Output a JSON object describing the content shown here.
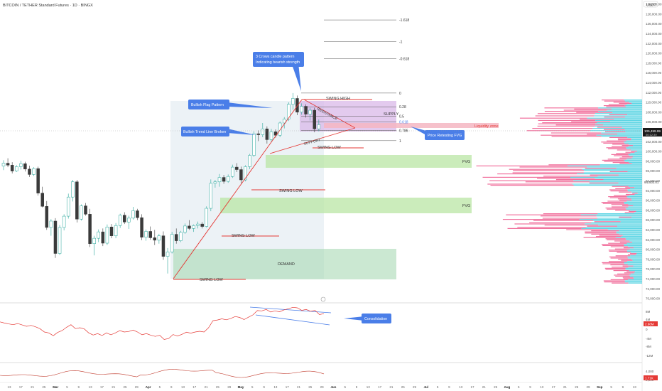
{
  "header": {
    "symbol_line": "BITCOIN / TETHER Standard Futures · 1D · BINGX",
    "currency_badge": "USDT"
  },
  "colors": {
    "bull": "#26a69a",
    "bear": "#3a3a3a",
    "pink": "#f06292",
    "cyan": "#4dd0e1",
    "fvg": "#b9e6a4",
    "supply": "#d9b8e8",
    "red_line": "#e53935",
    "blue_label": "#4a7ee8",
    "price_badge": "#1a1a1a",
    "rsi_line": "#e53935"
  },
  "price_axis": {
    "min": 70000,
    "max": 130000,
    "ticks": [
      130000,
      128000,
      126000,
      124000,
      122000,
      120000,
      118000,
      116000,
      114000,
      112000,
      110000,
      108000,
      106000,
      104000,
      102000,
      100000,
      98000,
      96000,
      94000,
      92000,
      90000,
      88000,
      86000,
      84000,
      82000,
      80000,
      78000,
      76000,
      74000,
      72000,
      70000
    ],
    "tick_labels": [
      "130,000.00",
      "128,000.00",
      "126,000.00",
      "124,000.00",
      "122,000.00",
      "120,000.00",
      "118,000.00",
      "116,000.00",
      "114,000.00",
      "112,000.00",
      "110,000.00",
      "108,000.00",
      "106,000.00",
      "104,000.00",
      "102,000.00",
      "100,000.00",
      "98,000.00",
      "96,000.00",
      "94,000.00",
      "92,000.00",
      "90,000.00",
      "88,000.00",
      "86,000.00",
      "84,000.00",
      "82,000.00",
      "80,000.00",
      "78,000.00",
      "76,000.00",
      "74,000.00",
      "72,000.00",
      "70,000.00"
    ],
    "last_price_label": "105,459.99",
    "last_price_sub": "00:12:39",
    "marker_label": "94,602.01"
  },
  "time_axis": {
    "labels": [
      "13",
      "17",
      "21",
      "25",
      "Mar",
      "5",
      "9",
      "13",
      "17",
      "21",
      "25",
      "29",
      "Apr",
      "5",
      "9",
      "13",
      "17",
      "21",
      "25",
      "29",
      "May",
      "5",
      "9",
      "13",
      "17",
      "21",
      "25",
      "29",
      "Jun",
      "5",
      "9",
      "13",
      "17",
      "21",
      "25",
      "29",
      "Jul",
      "5",
      "9",
      "13",
      "17",
      "21",
      "25",
      "Aug",
      "5",
      "9",
      "13",
      "17",
      "21",
      "25",
      "29",
      "Sep",
      "5",
      "9",
      "13"
    ]
  },
  "fib_levels": [
    {
      "ratio": "-1.618",
      "price": 126800
    },
    {
      "ratio": "-1",
      "price": 122400
    },
    {
      "ratio": "-0.618",
      "price": 118900
    },
    {
      "ratio": "0",
      "price": 111900
    },
    {
      "ratio": "0.28",
      "price": 109100
    },
    {
      "ratio": "0.5",
      "price": 107200
    },
    {
      "ratio": "0.618",
      "price": 106000
    },
    {
      "ratio": "0.786",
      "price": 104300
    },
    {
      "ratio": "1",
      "price": 102200
    }
  ],
  "zones": {
    "supply_label": "SUPPLY",
    "liquidity_label": "Liquidity zone",
    "fvg_label_1": "FVG",
    "fvg_label_2": "FVG",
    "demand_label": "DEMAND",
    "swing_high": "SWING HIGH",
    "swing_lows": [
      "SWING LOW",
      "SWING LOW",
      "SWING LOW",
      "SWING LOW"
    ],
    "resistance": "RESISTANCE",
    "support": "SUPPORT"
  },
  "callouts": {
    "crows_line1": "3 Crows candle pattern",
    "crows_line2": "Indicating bearish strength",
    "bull_flag": "Bullish Flag Pattern",
    "trend_broken": "Bullish Trend Line Broken",
    "retesting": "Price Retesting FVG",
    "consolidation": "Consolidation"
  },
  "indicator_axis": {
    "rsi_labels": [
      "8M",
      "4M",
      "0",
      "-4M",
      "-8M",
      "-12M"
    ],
    "rsi_badge": "2.66M",
    "vol_labels": [
      "4,000",
      "2,000"
    ],
    "vol_badge": "1.71K"
  },
  "chart_data": {
    "type": "candlestick",
    "title": "BITCOIN / TETHER Standard Futures · 1D · BINGX",
    "ylim": [
      70000,
      130000
    ],
    "candles": [
      [
        97000,
        98200,
        96200,
        97600
      ],
      [
        97600,
        98600,
        96800,
        97200
      ],
      [
        97200,
        97800,
        95500,
        96000
      ],
      [
        96000,
        97200,
        95800,
        96900
      ],
      [
        96900,
        98100,
        96300,
        97500
      ],
      [
        97500,
        97900,
        95900,
        96400
      ],
      [
        96400,
        97100,
        94800,
        95300
      ],
      [
        95300,
        96800,
        95000,
        96500
      ],
      [
        96500,
        96900,
        91000,
        91500
      ],
      [
        91500,
        92800,
        88600,
        88800
      ],
      [
        88800,
        89900,
        84000,
        84500
      ],
      [
        84500,
        86200,
        82800,
        85800
      ],
      [
        85800,
        86400,
        78300,
        79200
      ],
      [
        79200,
        85000,
        78900,
        84500
      ],
      [
        84500,
        87200,
        83900,
        86800
      ],
      [
        86800,
        91400,
        86300,
        90700
      ],
      [
        90700,
        94200,
        89800,
        93800
      ],
      [
        93800,
        94200,
        85500,
        86200
      ],
      [
        86200,
        89200,
        85900,
        88900
      ],
      [
        88900,
        89500,
        86900,
        87200
      ],
      [
        87200,
        88300,
        80500,
        81200
      ],
      [
        81200,
        82800,
        78800,
        82300
      ],
      [
        82300,
        84100,
        81500,
        83600
      ],
      [
        83600,
        84300,
        80700,
        81300
      ],
      [
        81300,
        85100,
        80900,
        84600
      ],
      [
        84600,
        85200,
        82300,
        82800
      ],
      [
        82800,
        85400,
        82300,
        84900
      ],
      [
        84900,
        87300,
        84400,
        87000
      ],
      [
        87000,
        87600,
        85200,
        85600
      ],
      [
        85600,
        86900,
        84200,
        86400
      ],
      [
        86400,
        88700,
        86100,
        87900
      ],
      [
        87900,
        88300,
        86000,
        86500
      ],
      [
        86500,
        87200,
        81900,
        82500
      ],
      [
        82500,
        84100,
        81800,
        83700
      ],
      [
        83700,
        84700,
        82000,
        82400
      ],
      [
        82400,
        84000,
        80900,
        81900
      ],
      [
        81900,
        83200,
        81200,
        82800
      ],
      [
        82800,
        83700,
        77900,
        78600
      ],
      [
        78600,
        80300,
        75100,
        79500
      ],
      [
        79500,
        83600,
        79200,
        83100
      ],
      [
        83100,
        84300,
        81200,
        81800
      ],
      [
        81800,
        83800,
        81500,
        83500
      ],
      [
        83500,
        85300,
        83200,
        84800
      ],
      [
        84800,
        86000,
        84000,
        84300
      ],
      [
        84300,
        85100,
        83600,
        84900
      ],
      [
        84900,
        85700,
        84300,
        85200
      ],
      [
        85200,
        85600,
        84300,
        84700
      ],
      [
        84700,
        88800,
        84500,
        88400
      ],
      [
        88400,
        94300,
        87800,
        93500
      ],
      [
        93500,
        94200,
        92600,
        93800
      ],
      [
        93800,
        95400,
        92800,
        94700
      ],
      [
        94700,
        95200,
        93400,
        93900
      ],
      [
        93900,
        95300,
        93600,
        94900
      ],
      [
        94900,
        97300,
        94600,
        96800
      ],
      [
        96800,
        97600,
        95800,
        96300
      ],
      [
        96300,
        96900,
        93500,
        94200
      ],
      [
        94200,
        97200,
        93900,
        96900
      ],
      [
        96900,
        99500,
        96400,
        99200
      ],
      [
        99200,
        104100,
        98900,
        103600
      ],
      [
        103600,
        104300,
        102100,
        103400
      ],
      [
        103400,
        105800,
        102900,
        104600
      ],
      [
        104600,
        105100,
        101600,
        102400
      ],
      [
        102400,
        104600,
        102000,
        104000
      ],
      [
        104000,
        104500,
        102800,
        103300
      ],
      [
        103300,
        106100,
        102900,
        105800
      ],
      [
        105800,
        107000,
        104700,
        106600
      ],
      [
        106600,
        110000,
        106200,
        109600
      ],
      [
        109600,
        111900,
        108500,
        110800
      ],
      [
        110800,
        111400,
        107400,
        108000
      ],
      [
        108000,
        109800,
        107500,
        109200
      ],
      [
        109200,
        109600,
        106900,
        107600
      ],
      [
        107600,
        108900,
        106300,
        108400
      ],
      [
        108400,
        108900,
        103900,
        104600
      ],
      [
        104600,
        106500,
        104100,
        105460
      ]
    ],
    "volume_profile_note": "Visible range volume profile on right side (pink/cyan)",
    "oscillator_values": [
      3.1,
      2.6,
      2.2,
      1.9,
      2.4,
      1.8,
      1.2,
      1.6,
      1.0,
      0.2,
      -1.2,
      -1.6,
      -2.8,
      -1.4,
      -0.6,
      0.8,
      1.9,
      0.2,
      0.6,
      0.1,
      -1.6,
      -2.5,
      -1.9,
      -2.7,
      -1.6,
      -2.4,
      -1.6,
      -0.6,
      -1.2,
      -1.0,
      -0.4,
      -1.2,
      -2.4,
      -1.9,
      -2.6,
      -3.1,
      -2.6,
      -4.4,
      -4.0,
      -2.3,
      -2.9,
      -2.2,
      -1.3,
      -1.7,
      -1.2,
      -0.9,
      -1.2,
      0.6,
      3.6,
      3.9,
      4.4,
      4.0,
      4.5,
      5.4,
      5.0,
      4.1,
      5.1,
      6.1,
      7.9,
      7.8,
      8.4,
      7.3,
      7.8,
      7.4,
      8.2,
      8.7,
      9.3,
      9.1,
      8.0,
      8.4,
      7.6,
      8.0,
      6.2,
      6.6
    ]
  }
}
